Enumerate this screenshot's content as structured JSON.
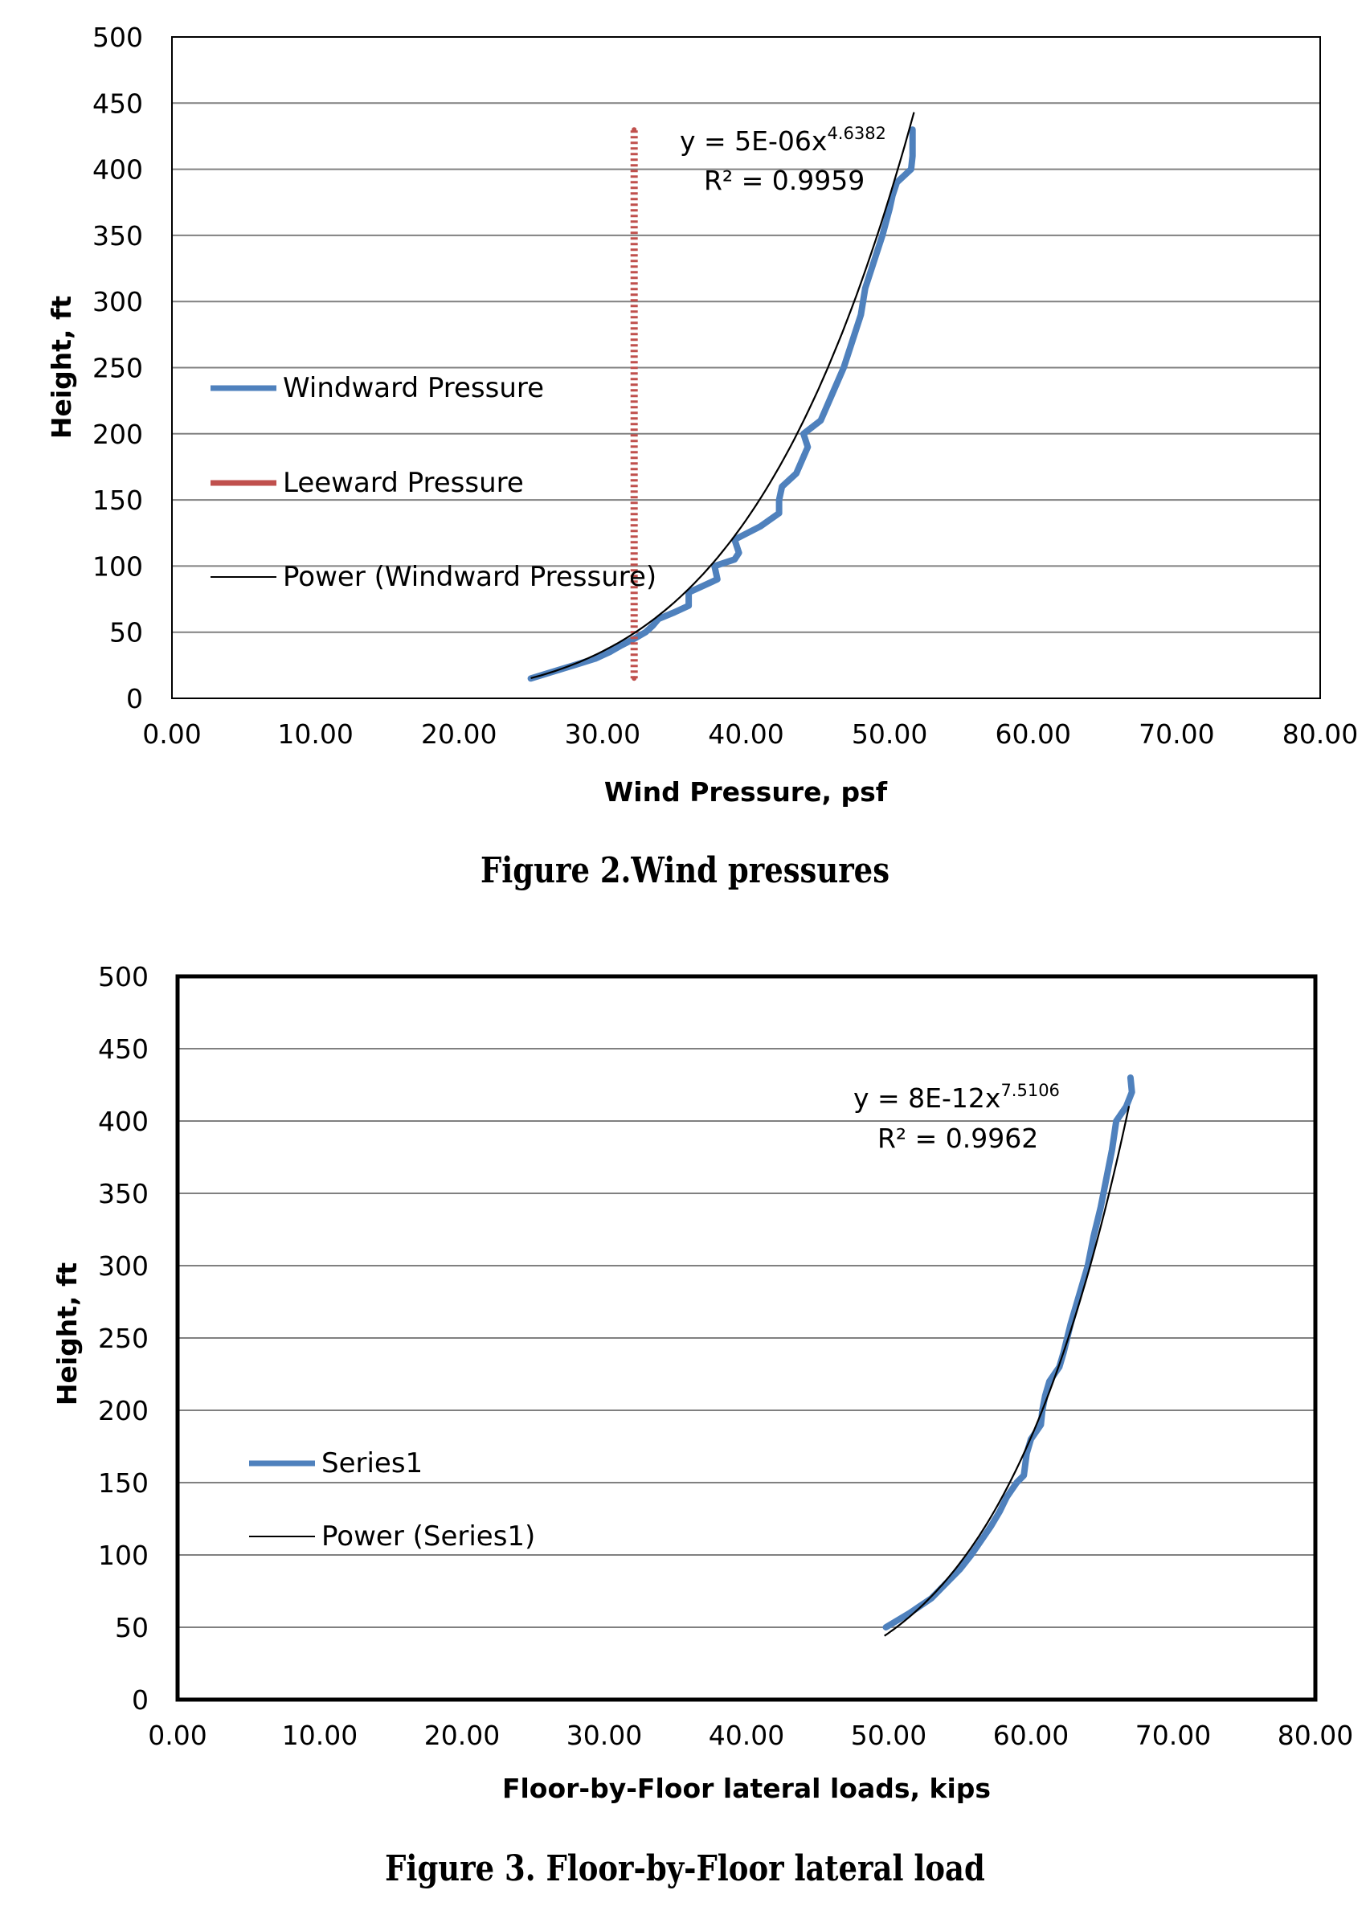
{
  "figures": [
    {
      "caption": "Figure 2.Wind pressures",
      "chart_data": {
        "type": "line",
        "xlabel": "Wind Pressure, psf",
        "ylabel": "Height, ft",
        "xlim": [
          0,
          80
        ],
        "ylim": [
          0,
          500
        ],
        "x_ticks": [
          "0.00",
          "10.00",
          "20.00",
          "30.00",
          "40.00",
          "50.00",
          "60.00",
          "70.00",
          "80.00"
        ],
        "y_ticks": [
          "0",
          "50",
          "100",
          "150",
          "200",
          "250",
          "300",
          "350",
          "400",
          "450",
          "500"
        ],
        "grid": "horizontal major",
        "legend_position": "left",
        "series": [
          {
            "name": "Windward Pressure",
            "color": "#4f81bd",
            "points": [
              [
                25.0,
                15
              ],
              [
                26.5,
                20
              ],
              [
                28.0,
                25
              ],
              [
                29.5,
                30
              ],
              [
                30.5,
                35
              ],
              [
                31.3,
                40
              ],
              [
                32.2,
                45
              ],
              [
                33.0,
                50
              ],
              [
                33.5,
                55
              ],
              [
                33.9,
                60
              ],
              [
                35.0,
                65
              ],
              [
                36.0,
                70
              ],
              [
                36.0,
                80
              ],
              [
                37.0,
                85
              ],
              [
                38.0,
                90
              ],
              [
                37.8,
                100
              ],
              [
                39.2,
                105
              ],
              [
                39.5,
                110
              ],
              [
                39.2,
                120
              ],
              [
                41.0,
                130
              ],
              [
                42.3,
                140
              ],
              [
                42.3,
                150
              ],
              [
                42.5,
                160
              ],
              [
                43.5,
                170
              ],
              [
                44.3,
                190
              ],
              [
                44.0,
                200
              ],
              [
                45.2,
                210
              ],
              [
                46.0,
                230
              ],
              [
                46.8,
                250
              ],
              [
                47.4,
                270
              ],
              [
                48.0,
                290
              ],
              [
                48.3,
                310
              ],
              [
                48.9,
                330
              ],
              [
                49.5,
                350
              ],
              [
                50.0,
                370
              ],
              [
                50.2,
                380
              ],
              [
                50.5,
                390
              ],
              [
                51.5,
                400
              ],
              [
                51.6,
                410
              ],
              [
                51.6,
                420
              ],
              [
                51.6,
                430
              ]
            ]
          },
          {
            "name": "Leeward Pressure",
            "color": "#c0504d",
            "points": [
              [
                32.2,
                15
              ],
              [
                32.2,
                430
              ]
            ]
          }
        ],
        "trendlines": [
          {
            "name": "Power (Windward Pressure)",
            "color": "#000000",
            "fit": "power",
            "coef": 5e-06,
            "exponent": 4.6382,
            "x_range": [
              25.0,
              51.7
            ]
          }
        ],
        "annotations": {
          "equation_prefix": "y = 5E-06x",
          "equation_exponent": "4.6382",
          "r_squared": "R² = 0.9959"
        }
      }
    },
    {
      "caption": "Figure 3. Floor-by-Floor lateral load",
      "chart_data": {
        "type": "line",
        "xlabel": "Floor-by-Floor lateral loads, kips",
        "ylabel": "Height, ft",
        "xlim": [
          0,
          80
        ],
        "ylim": [
          0,
          500
        ],
        "x_ticks": [
          "0.00",
          "10.00",
          "20.00",
          "30.00",
          "40.00",
          "50.00",
          "60.00",
          "70.00",
          "80.00"
        ],
        "y_ticks": [
          "0",
          "50",
          "100",
          "150",
          "200",
          "250",
          "300",
          "350",
          "400",
          "450",
          "500"
        ],
        "grid": "horizontal major",
        "legend_position": "left",
        "series": [
          {
            "name": "Series1",
            "color": "#4f81bd",
            "points": [
              [
                49.8,
                50
              ],
              [
                51.5,
                60
              ],
              [
                53.0,
                70
              ],
              [
                54.0,
                80
              ],
              [
                55.0,
                90
              ],
              [
                55.8,
                100
              ],
              [
                56.5,
                110
              ],
              [
                57.2,
                120
              ],
              [
                57.8,
                130
              ],
              [
                58.3,
                140
              ],
              [
                59.0,
                150
              ],
              [
                59.5,
                155
              ],
              [
                59.7,
                170
              ],
              [
                60.0,
                180
              ],
              [
                60.7,
                190
              ],
              [
                60.8,
                200
              ],
              [
                61.0,
                210
              ],
              [
                61.3,
                220
              ],
              [
                62.0,
                230
              ],
              [
                62.3,
                240
              ],
              [
                62.8,
                260
              ],
              [
                63.4,
                280
              ],
              [
                64.0,
                300
              ],
              [
                64.4,
                320
              ],
              [
                64.9,
                340
              ],
              [
                65.3,
                360
              ],
              [
                65.7,
                380
              ],
              [
                66.0,
                400
              ],
              [
                66.7,
                410
              ],
              [
                67.1,
                420
              ],
              [
                67.0,
                430
              ]
            ]
          }
        ],
        "trendlines": [
          {
            "name": "Power (Series1)",
            "color": "#000000",
            "fit": "power",
            "coef": 8e-12,
            "exponent": 7.5106,
            "x_range": [
              49.7,
              66.9
            ]
          }
        ],
        "annotations": {
          "equation_prefix": "y = 8E-12x",
          "equation_exponent": "7.5106",
          "r_squared": "R² = 0.9962"
        }
      }
    }
  ]
}
